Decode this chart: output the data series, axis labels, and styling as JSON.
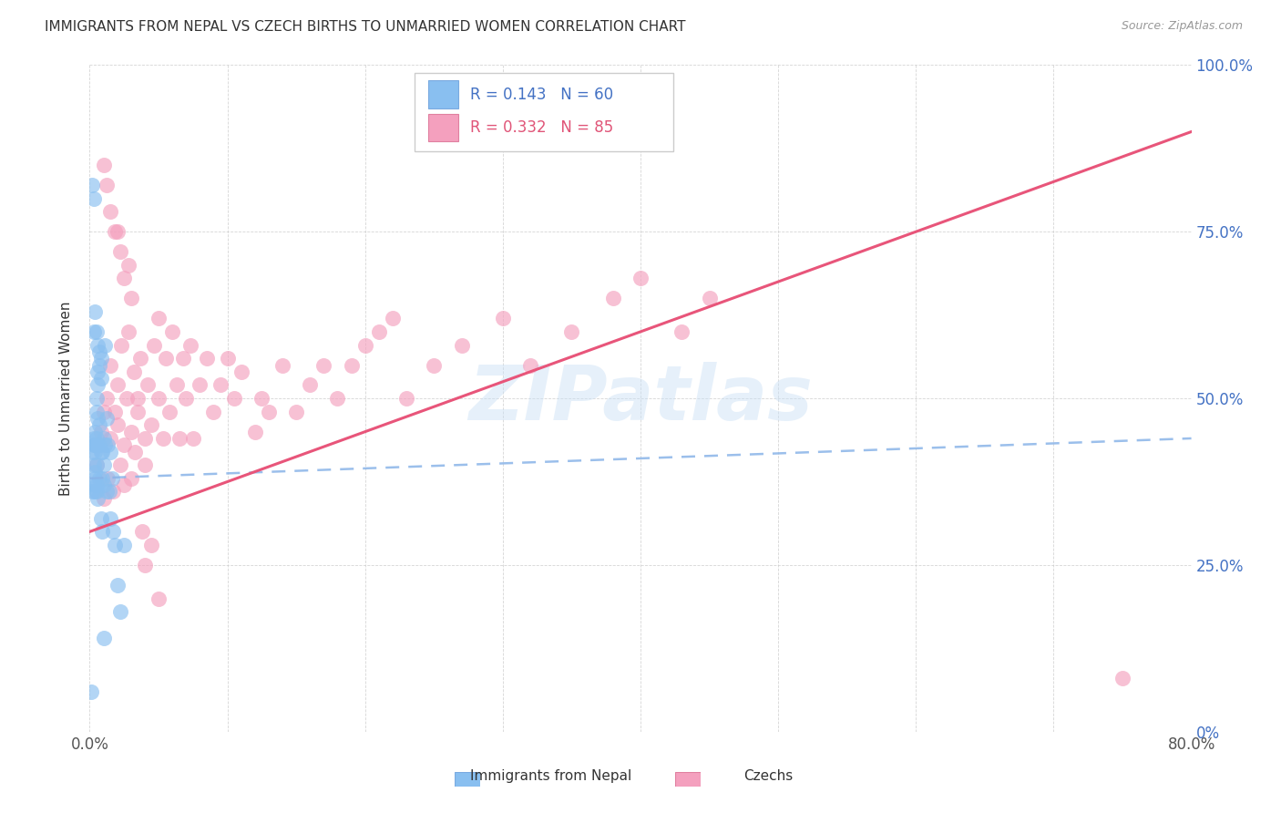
{
  "title": "IMMIGRANTS FROM NEPAL VS CZECH BIRTHS TO UNMARRIED WOMEN CORRELATION CHART",
  "source": "Source: ZipAtlas.com",
  "ylabel": "Births to Unmarried Women",
  "xlim": [
    0.0,
    0.8
  ],
  "ylim": [
    0.0,
    1.0
  ],
  "yticks": [
    0.0,
    0.25,
    0.5,
    0.75,
    1.0
  ],
  "yticklabels_right": [
    "0%",
    "25.0%",
    "50.0%",
    "75.0%",
    "100.0%"
  ],
  "legend_r1": "R = 0.143",
  "legend_n1": "N = 60",
  "legend_r2": "R = 0.332",
  "legend_n2": "N = 85",
  "color_nepal": "#89bff0",
  "color_czech": "#f4a0be",
  "color_nepal_line": "#8ab4e8",
  "color_czech_line": "#e8557a",
  "watermark": "ZIPatlas",
  "legend_label_nepal": "Immigrants from Nepal",
  "legend_label_czech": "Czechs",
  "nepal_x": [
    0.001,
    0.002,
    0.002,
    0.002,
    0.003,
    0.003,
    0.003,
    0.003,
    0.003,
    0.004,
    0.004,
    0.004,
    0.004,
    0.004,
    0.004,
    0.005,
    0.005,
    0.005,
    0.005,
    0.005,
    0.005,
    0.005,
    0.006,
    0.006,
    0.006,
    0.006,
    0.007,
    0.007,
    0.007,
    0.007,
    0.008,
    0.008,
    0.008,
    0.009,
    0.009,
    0.01,
    0.01,
    0.01,
    0.011,
    0.011,
    0.012,
    0.012,
    0.013,
    0.014,
    0.015,
    0.016,
    0.017,
    0.018,
    0.02,
    0.022,
    0.003,
    0.004,
    0.005,
    0.006,
    0.007,
    0.008,
    0.009,
    0.01,
    0.015,
    0.025
  ],
  "nepal_y": [
    0.06,
    0.42,
    0.36,
    0.82,
    0.44,
    0.4,
    0.37,
    0.43,
    0.8,
    0.39,
    0.45,
    0.38,
    0.42,
    0.36,
    0.43,
    0.5,
    0.48,
    0.36,
    0.44,
    0.4,
    0.37,
    0.43,
    0.54,
    0.52,
    0.47,
    0.35,
    0.43,
    0.46,
    0.55,
    0.38,
    0.42,
    0.56,
    0.53,
    0.38,
    0.42,
    0.44,
    0.4,
    0.37,
    0.58,
    0.43,
    0.36,
    0.47,
    0.43,
    0.36,
    0.42,
    0.38,
    0.3,
    0.28,
    0.22,
    0.18,
    0.6,
    0.63,
    0.6,
    0.58,
    0.57,
    0.32,
    0.3,
    0.14,
    0.32,
    0.28
  ],
  "czech_x": [
    0.005,
    0.008,
    0.01,
    0.01,
    0.012,
    0.013,
    0.015,
    0.015,
    0.017,
    0.018,
    0.02,
    0.02,
    0.022,
    0.023,
    0.025,
    0.025,
    0.027,
    0.028,
    0.03,
    0.03,
    0.032,
    0.033,
    0.035,
    0.037,
    0.04,
    0.04,
    0.042,
    0.045,
    0.047,
    0.05,
    0.05,
    0.053,
    0.055,
    0.058,
    0.06,
    0.063,
    0.065,
    0.068,
    0.07,
    0.073,
    0.075,
    0.08,
    0.085,
    0.09,
    0.095,
    0.1,
    0.105,
    0.11,
    0.12,
    0.125,
    0.13,
    0.14,
    0.15,
    0.16,
    0.17,
    0.18,
    0.19,
    0.2,
    0.21,
    0.22,
    0.23,
    0.25,
    0.27,
    0.3,
    0.32,
    0.35,
    0.38,
    0.4,
    0.43,
    0.45,
    0.01,
    0.012,
    0.015,
    0.018,
    0.02,
    0.022,
    0.025,
    0.028,
    0.03,
    0.035,
    0.038,
    0.04,
    0.045,
    0.05,
    0.75
  ],
  "czech_y": [
    0.4,
    0.45,
    0.35,
    0.48,
    0.5,
    0.38,
    0.44,
    0.55,
    0.36,
    0.48,
    0.52,
    0.46,
    0.4,
    0.58,
    0.43,
    0.37,
    0.5,
    0.6,
    0.45,
    0.38,
    0.54,
    0.42,
    0.48,
    0.56,
    0.4,
    0.44,
    0.52,
    0.46,
    0.58,
    0.5,
    0.62,
    0.44,
    0.56,
    0.48,
    0.6,
    0.52,
    0.44,
    0.56,
    0.5,
    0.58,
    0.44,
    0.52,
    0.56,
    0.48,
    0.52,
    0.56,
    0.5,
    0.54,
    0.45,
    0.5,
    0.48,
    0.55,
    0.48,
    0.52,
    0.55,
    0.5,
    0.55,
    0.58,
    0.6,
    0.62,
    0.5,
    0.55,
    0.58,
    0.62,
    0.55,
    0.6,
    0.65,
    0.68,
    0.6,
    0.65,
    0.85,
    0.82,
    0.78,
    0.75,
    0.75,
    0.72,
    0.68,
    0.7,
    0.65,
    0.5,
    0.3,
    0.25,
    0.28,
    0.2,
    0.08
  ],
  "nepal_trend_x0": 0.0,
  "nepal_trend_x1": 0.8,
  "nepal_trend_y0": 0.38,
  "nepal_trend_y1": 0.44,
  "czech_trend_x0": 0.0,
  "czech_trend_x1": 0.8,
  "czech_trend_y0": 0.3,
  "czech_trend_y1": 0.9
}
